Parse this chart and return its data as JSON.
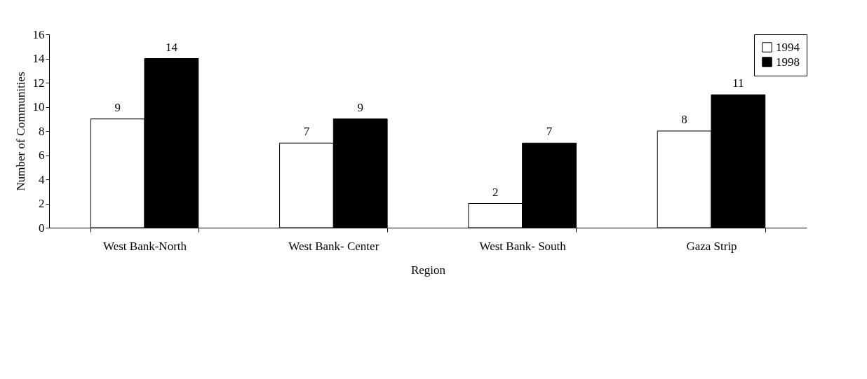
{
  "chart_data": {
    "type": "bar",
    "xlabel": "Region",
    "ylabel": "Number of Communities",
    "categories": [
      "West Bank-North",
      "West Bank- Center",
      "West Bank- South",
      "Gaza Strip"
    ],
    "series": [
      {
        "name": "1994",
        "color": "#ffffff",
        "values": [
          9,
          7,
          2,
          8
        ]
      },
      {
        "name": "1998",
        "color": "#000000",
        "values": [
          14,
          9,
          7,
          11
        ]
      }
    ],
    "ylim": [
      0,
      16
    ],
    "yticks": [
      0,
      2,
      4,
      6,
      8,
      10,
      12,
      14,
      16
    ],
    "grid": false,
    "legend": "top right",
    "data_labels": true
  }
}
